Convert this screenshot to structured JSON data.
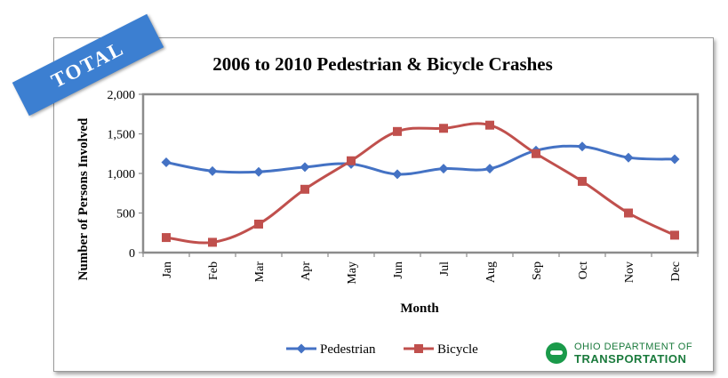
{
  "banner": {
    "text": "TOTAL",
    "color": "#3c7fd1"
  },
  "logo": {
    "line1": "OHIO DEPARTMENT OF",
    "line2": "TRANSPORTATION",
    "color": "#1a7a3c"
  },
  "chart_data": {
    "type": "line",
    "title": "2006 to 2010 Pedestrian & Bicycle Crashes",
    "xlabel": "Month",
    "ylabel": "Number of Persons Involved",
    "categories": [
      "Jan",
      "Feb",
      "Mar",
      "Apr",
      "May",
      "Jun",
      "Jul",
      "Aug",
      "Sep",
      "Oct",
      "Nov",
      "Dec"
    ],
    "ylim": [
      0,
      2000
    ],
    "yticks": [
      0,
      500,
      1000,
      1500,
      2000
    ],
    "ytick_labels": [
      "0",
      "500",
      "1,000",
      "1,500",
      "2,000"
    ],
    "grid": false,
    "legend": "bottom",
    "series": [
      {
        "name": "Pedestrian",
        "color": "#4472c4",
        "marker": "diamond",
        "values": [
          1140,
          1030,
          1020,
          1080,
          1120,
          990,
          1060,
          1060,
          1290,
          1340,
          1200,
          1180
        ]
      },
      {
        "name": "Bicycle",
        "color": "#c0504d",
        "marker": "square",
        "values": [
          190,
          130,
          360,
          800,
          1160,
          1530,
          1570,
          1610,
          1250,
          900,
          500,
          220
        ]
      }
    ]
  }
}
